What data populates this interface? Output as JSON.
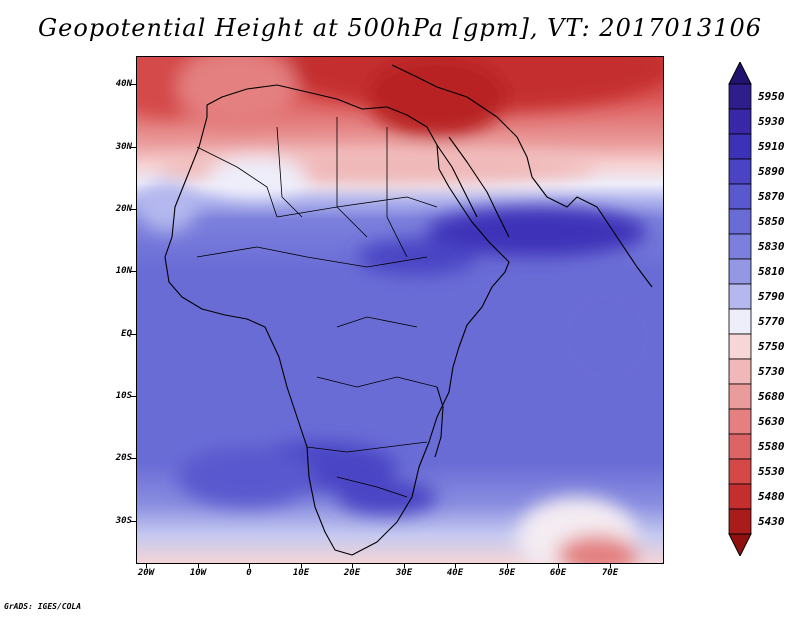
{
  "title": "Geopotential Height at 500hPa [gpm], VT: 2017013106",
  "footer": "GrADS: IGES/COLA",
  "colorbar": {
    "labels": [
      "5950",
      "5930",
      "5910",
      "5890",
      "5870",
      "5850",
      "5830",
      "5810",
      "5790",
      "5770",
      "5750",
      "5730",
      "5680",
      "5630",
      "5580",
      "5530",
      "5480",
      "5430"
    ],
    "colors": [
      "#2e1e8c",
      "#3828a8",
      "#3c32b8",
      "#4a44c4",
      "#5a58ce",
      "#6a6cd6",
      "#7c80dc",
      "#9498e4",
      "#b4b8ee",
      "#eeeefa",
      "#f6d6d6",
      "#f0b8b8",
      "#ea9c9c",
      "#e48080",
      "#dc6464",
      "#d44848",
      "#c42e2e",
      "#a81c1c"
    ],
    "top_arrow_color": "#221270",
    "bottom_arrow_color": "#901010"
  },
  "map": {
    "lat_labels": [
      "40N",
      "30N",
      "20N",
      "10N",
      "EQ",
      "10S",
      "20S",
      "30S"
    ],
    "lon_labels": [
      "20W",
      "10W",
      "0",
      "10E",
      "20E",
      "30E",
      "40E",
      "50E",
      "60E",
      "70E"
    ],
    "palette": {
      "deep_red": "#b82222",
      "red": "#d44848",
      "mid_red": "#e07070",
      "light_red": "#eea0a0",
      "pink": "#f6cccc",
      "white": "#f0f0fa",
      "pale_blue": "#b8bcee",
      "blue": "#7c80dc",
      "mid_blue": "#6a6cd6",
      "deep_blue": "#4a44c4",
      "darkest_blue": "#3c32b8"
    }
  }
}
